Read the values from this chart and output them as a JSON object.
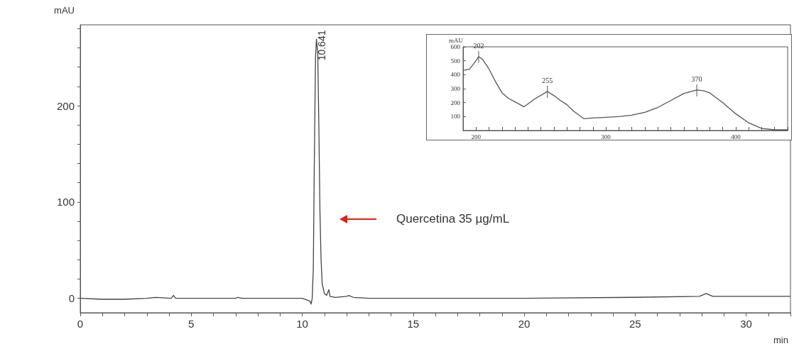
{
  "chart_data": [
    {
      "type": "line",
      "xlabel": "min",
      "ylabel": "mAU",
      "color": "#444444",
      "marker": "none",
      "grid": false,
      "x": [
        0,
        1,
        2,
        3,
        3.4,
        4.1,
        4.2,
        4.3,
        7,
        7.1,
        7.3,
        10,
        10.35,
        10.4,
        10.45,
        10.5,
        10.55,
        10.6,
        10.641,
        10.7,
        10.75,
        10.8,
        10.85,
        10.9,
        11.0,
        11.1,
        11.2,
        11.25,
        11.5,
        12.0,
        12.1,
        12.3,
        13,
        20,
        25,
        27.9,
        28.2,
        28.5,
        30,
        32
      ],
      "values": [
        0,
        -1,
        -1,
        0,
        1,
        0,
        3,
        0,
        0,
        1,
        0,
        0,
        -3,
        -6,
        0,
        30,
        150,
        250,
        269,
        255,
        180,
        90,
        40,
        15,
        5,
        3,
        9,
        2,
        1,
        2,
        3,
        1,
        0,
        0,
        1,
        2,
        5,
        2,
        2,
        2
      ],
      "xlim": [
        0,
        32
      ],
      "ylim": [
        -15,
        284
      ],
      "xticks": [
        0,
        5,
        10,
        15,
        20,
        25,
        30
      ],
      "yticks": [
        0,
        100,
        200
      ],
      "annotations": [
        {
          "text": "10.641",
          "x": 10.641,
          "y": 269
        },
        "Quercetina 35 µg/mL"
      ]
    },
    {
      "type": "line",
      "ylabel": "mAU",
      "color": "#555555",
      "marker": "none",
      "grid": false,
      "x": [
        190,
        195,
        200,
        202,
        205,
        210,
        215,
        220,
        225,
        230,
        237,
        245,
        255,
        260,
        265,
        270,
        275,
        283,
        290,
        300,
        310,
        320,
        330,
        340,
        350,
        360,
        370,
        375,
        380,
        390,
        400,
        410,
        420,
        430,
        440
      ],
      "values": [
        430,
        440,
        500,
        530,
        510,
        440,
        350,
        270,
        230,
        205,
        170,
        225,
        280,
        250,
        215,
        185,
        140,
        85,
        90,
        95,
        100,
        110,
        130,
        165,
        215,
        265,
        290,
        285,
        270,
        200,
        120,
        55,
        15,
        5,
        5
      ],
      "xlim": [
        190,
        440
      ],
      "ylim": [
        0,
        600
      ],
      "xticks": [
        200,
        300,
        400
      ],
      "yticks": [
        100,
        200,
        300,
        400,
        500,
        600
      ],
      "annotations": [
        {
          "text": "202",
          "x": 202,
          "y": 530
        },
        {
          "text": "255",
          "x": 255,
          "y": 280
        },
        {
          "text": "370",
          "x": 370,
          "y": 290
        }
      ]
    }
  ]
}
